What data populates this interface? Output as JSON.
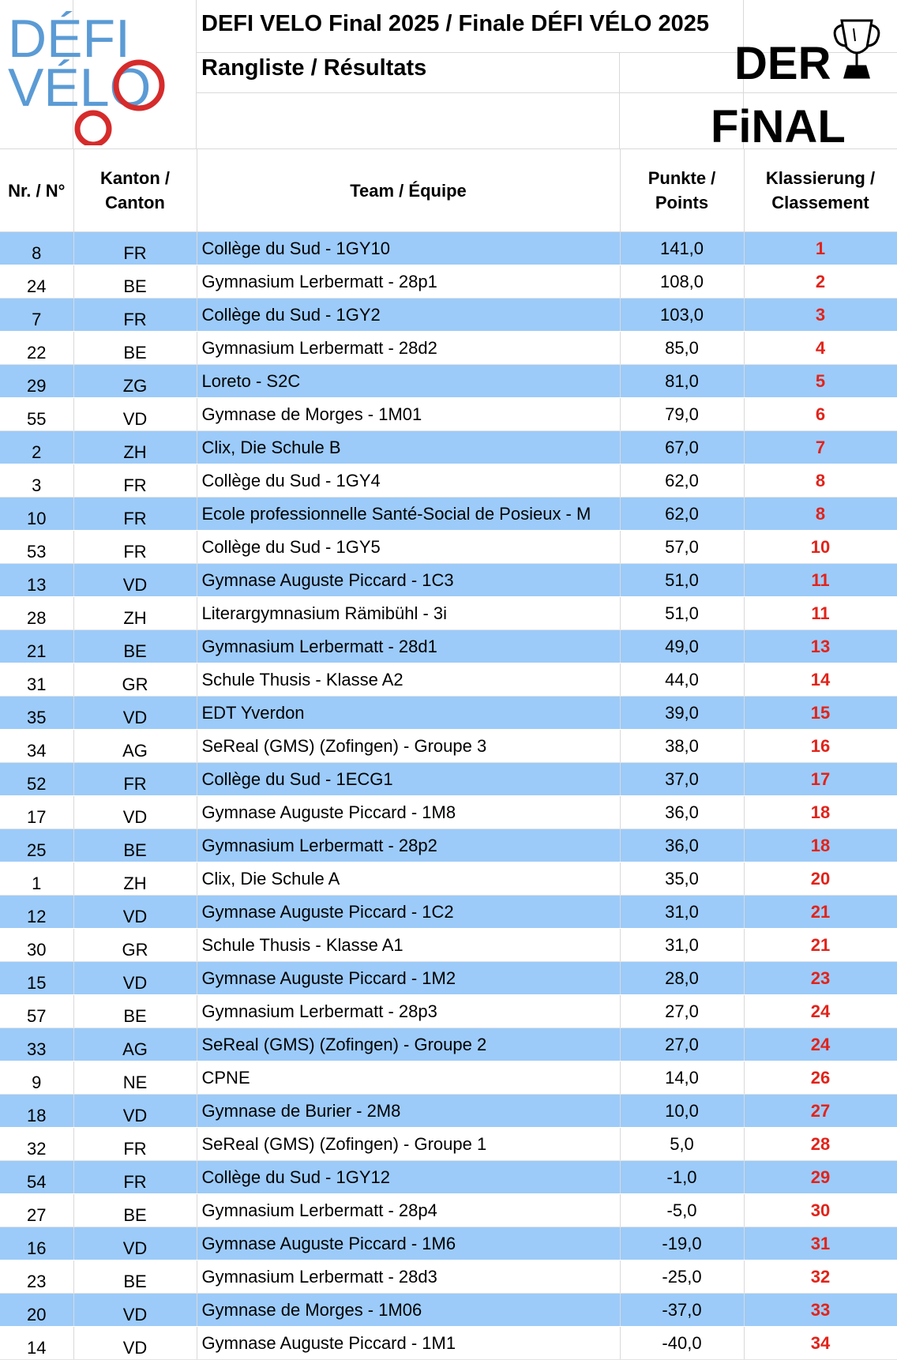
{
  "header": {
    "logo_text": [
      "DÉFI",
      "VÉLO"
    ],
    "title": "DEFI VELO Final 2025 / Finale DÉFI VÉLO 2025",
    "subtitle": "Rangliste / Résultats",
    "final_art_text": [
      "DER",
      "FiNAL"
    ],
    "colors": {
      "logo_blue": "#5b9bd5",
      "logo_red": "#d62b2b"
    }
  },
  "table": {
    "columns": [
      "Nr. / N°",
      "Kanton / Canton",
      "Team / Équipe",
      "Punkte / Points",
      "Klassierung / Classement"
    ],
    "column_lines": [
      [
        "Nr. / N°"
      ],
      [
        "Kanton /",
        "Canton"
      ],
      [
        "Team / Équipe"
      ],
      [
        "Punkte /",
        "Points"
      ],
      [
        "Klassierung /",
        "Classement"
      ]
    ],
    "colors": {
      "row_stripe": "#9ccbf9",
      "rank_text": "#e2231a"
    },
    "rows": [
      {
        "nr": "8",
        "canton": "FR",
        "team": "Collège du Sud - 1GY10",
        "points": "141,0",
        "rank": "1"
      },
      {
        "nr": "24",
        "canton": "BE",
        "team": "Gymnasium Lerbermatt - 28p1",
        "points": "108,0",
        "rank": "2"
      },
      {
        "nr": "7",
        "canton": "FR",
        "team": "Collège du Sud - 1GY2",
        "points": "103,0",
        "rank": "3"
      },
      {
        "nr": "22",
        "canton": "BE",
        "team": "Gymnasium Lerbermatt - 28d2",
        "points": "85,0",
        "rank": "4"
      },
      {
        "nr": "29",
        "canton": "ZG",
        "team": "Loreto - S2C",
        "points": "81,0",
        "rank": "5"
      },
      {
        "nr": "55",
        "canton": "VD",
        "team": "Gymnase de Morges - 1M01",
        "points": "79,0",
        "rank": "6"
      },
      {
        "nr": "2",
        "canton": "ZH",
        "team": "Clix, Die Schule B",
        "points": "67,0",
        "rank": "7"
      },
      {
        "nr": "3",
        "canton": "FR",
        "team": "Collège du Sud - 1GY4",
        "points": "62,0",
        "rank": "8"
      },
      {
        "nr": "10",
        "canton": "FR",
        "team": "Ecole professionnelle Santé-Social de Posieux - M",
        "points": "62,0",
        "rank": "8"
      },
      {
        "nr": "53",
        "canton": "FR",
        "team": "Collège du Sud - 1GY5",
        "points": "57,0",
        "rank": "10"
      },
      {
        "nr": "13",
        "canton": "VD",
        "team": "Gymnase Auguste Piccard - 1C3",
        "points": "51,0",
        "rank": "11"
      },
      {
        "nr": "28",
        "canton": "ZH",
        "team": "Literargymnasium Rämibühl - 3i",
        "points": "51,0",
        "rank": "11"
      },
      {
        "nr": "21",
        "canton": "BE",
        "team": "Gymnasium Lerbermatt - 28d1",
        "points": "49,0",
        "rank": "13"
      },
      {
        "nr": "31",
        "canton": "GR",
        "team": "Schule Thusis - Klasse A2",
        "points": "44,0",
        "rank": "14"
      },
      {
        "nr": "35",
        "canton": "VD",
        "team": "EDT Yverdon",
        "points": "39,0",
        "rank": "15"
      },
      {
        "nr": "34",
        "canton": "AG",
        "team": "SeReal (GMS) (Zofingen) - Groupe 3",
        "points": "38,0",
        "rank": "16"
      },
      {
        "nr": "52",
        "canton": "FR",
        "team": "Collège du Sud - 1ECG1",
        "points": "37,0",
        "rank": "17"
      },
      {
        "nr": "17",
        "canton": "VD",
        "team": "Gymnase Auguste Piccard - 1M8",
        "points": "36,0",
        "rank": "18"
      },
      {
        "nr": "25",
        "canton": "BE",
        "team": "Gymnasium Lerbermatt - 28p2",
        "points": "36,0",
        "rank": "18"
      },
      {
        "nr": "1",
        "canton": "ZH",
        "team": "Clix, Die Schule A",
        "points": "35,0",
        "rank": "20"
      },
      {
        "nr": "12",
        "canton": "VD",
        "team": "Gymnase Auguste Piccard - 1C2",
        "points": "31,0",
        "rank": "21"
      },
      {
        "nr": "30",
        "canton": "GR",
        "team": "Schule Thusis - Klasse A1",
        "points": "31,0",
        "rank": "21"
      },
      {
        "nr": "15",
        "canton": "VD",
        "team": "Gymnase Auguste Piccard - 1M2",
        "points": "28,0",
        "rank": "23"
      },
      {
        "nr": "57",
        "canton": "BE",
        "team": "Gymnasium Lerbermatt - 28p3",
        "points": "27,0",
        "rank": "24"
      },
      {
        "nr": "33",
        "canton": "AG",
        "team": "SeReal (GMS) (Zofingen) - Groupe 2",
        "points": "27,0",
        "rank": "24"
      },
      {
        "nr": "9",
        "canton": "NE",
        "team": "CPNE",
        "points": "14,0",
        "rank": "26"
      },
      {
        "nr": "18",
        "canton": "VD",
        "team": "Gymnase de Burier - 2M8",
        "points": "10,0",
        "rank": "27"
      },
      {
        "nr": "32",
        "canton": "FR",
        "team": "SeReal (GMS) (Zofingen) - Groupe 1",
        "points": "5,0",
        "rank": "28"
      },
      {
        "nr": "54",
        "canton": "FR",
        "team": "Collège du Sud - 1GY12",
        "points": "-1,0",
        "rank": "29"
      },
      {
        "nr": "27",
        "canton": "BE",
        "team": "Gymnasium Lerbermatt - 28p4",
        "points": "-5,0",
        "rank": "30"
      },
      {
        "nr": "16",
        "canton": "VD",
        "team": "Gymnase Auguste Piccard - 1M6",
        "points": "-19,0",
        "rank": "31"
      },
      {
        "nr": "23",
        "canton": "BE",
        "team": "Gymnasium Lerbermatt - 28d3",
        "points": "-25,0",
        "rank": "32"
      },
      {
        "nr": "20",
        "canton": "VD",
        "team": "Gymnase de Morges - 1M06",
        "points": "-37,0",
        "rank": "33"
      },
      {
        "nr": "14",
        "canton": "VD",
        "team": "Gymnase Auguste Piccard - 1M1",
        "points": "-40,0",
        "rank": "34"
      }
    ]
  }
}
